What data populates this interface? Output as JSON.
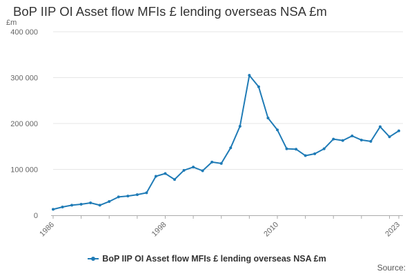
{
  "title": "BoP IIP OI Asset flow MFIs £ lending overseas NSA £m",
  "source_label": "Source:",
  "accent_color": "#1f7bb6",
  "chart_data": {
    "type": "line",
    "title": "BoP IIP OI Asset flow MFIs £ lending overseas NSA £m",
    "ylabel": "£m",
    "xlabel": "",
    "ylim": [
      0,
      400000
    ],
    "xlim": [
      1986,
      2023
    ],
    "yticks": [
      0,
      100000,
      200000,
      300000,
      400000
    ],
    "ytick_labels": [
      "0",
      "100 000",
      "200 000",
      "300 000",
      "400 000"
    ],
    "xticks": [
      1986,
      1998,
      2010,
      2023
    ],
    "xtick_labels": [
      "1986",
      "1998",
      "2010",
      "2023"
    ],
    "grid": true,
    "legend_position": "bottom",
    "x": [
      1986,
      1987,
      1988,
      1989,
      1990,
      1991,
      1992,
      1993,
      1994,
      1995,
      1996,
      1997,
      1998,
      1999,
      2000,
      2001,
      2002,
      2003,
      2004,
      2005,
      2006,
      2007,
      2008,
      2009,
      2010,
      2011,
      2012,
      2013,
      2014,
      2015,
      2016,
      2017,
      2018,
      2019,
      2020,
      2021,
      2022,
      2023
    ],
    "series": [
      {
        "name": "BoP IIP OI Asset flow MFIs £ lending overseas NSA £m",
        "color": "#1f7bb6",
        "values": [
          13000,
          18000,
          22000,
          24000,
          27000,
          22000,
          30000,
          40000,
          42000,
          45000,
          49000,
          85000,
          91000,
          78000,
          98000,
          105000,
          97000,
          116000,
          113000,
          147000,
          194000,
          305000,
          280000,
          212000,
          186000,
          145000,
          144000,
          130000,
          134000,
          145000,
          166000,
          163000,
          173000,
          164000,
          161000,
          193000,
          171000,
          184000
        ]
      }
    ]
  }
}
